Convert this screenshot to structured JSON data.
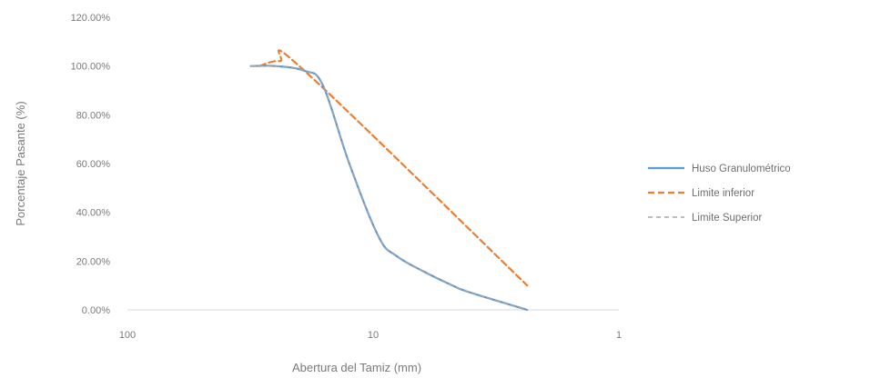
{
  "chart_data": {
    "type": "line",
    "title": "",
    "xlabel": "Abertura del Tamiz (mm)",
    "ylabel": "Porcentaje Pasante (%)",
    "x_scale": "log",
    "x_reversed": true,
    "xlim": [
      100,
      1
    ],
    "ylim": [
      0,
      1.2
    ],
    "x_ticks": [
      {
        "value": 100,
        "label": "100"
      },
      {
        "value": 10,
        "label": "10"
      },
      {
        "value": 1,
        "label": "1"
      }
    ],
    "y_ticks": [
      {
        "value": 0,
        "label": "0.00%"
      },
      {
        "value": 0.2,
        "label": "20.00%"
      },
      {
        "value": 0.4,
        "label": "40.00%"
      },
      {
        "value": 0.6,
        "label": "60.00%"
      },
      {
        "value": 0.8,
        "label": "80.00%"
      },
      {
        "value": 1.0,
        "label": "100.00%"
      },
      {
        "value": 1.2,
        "label": "120.00%"
      }
    ],
    "grid": false,
    "legend_position": "right",
    "series": [
      {
        "name": "Huso Granulométrico",
        "color": "#5b9bd5",
        "style": "solid",
        "points": [
          [
            31.5,
            1.0
          ],
          [
            25,
            1.0
          ],
          [
            19,
            0.98
          ],
          [
            16,
            0.92
          ],
          [
            12.5,
            0.6
          ],
          [
            9.5,
            0.3
          ],
          [
            8,
            0.22
          ],
          [
            6.3,
            0.16
          ],
          [
            4.75,
            0.1
          ],
          [
            4,
            0.07
          ],
          [
            2.36,
            0.0
          ]
        ]
      },
      {
        "name": "Limite inferior",
        "color": "#ed7d31",
        "style": "dashed",
        "points": [
          [
            29,
            1.0
          ],
          [
            24,
            1.02
          ],
          [
            19,
            0.98
          ],
          [
            2.36,
            0.1
          ]
        ]
      },
      {
        "name": "Limite Superior",
        "color": "#a5a5a5",
        "style": "dashed",
        "points": [
          [
            31.5,
            1.0
          ],
          [
            25,
            1.0
          ],
          [
            19,
            0.98
          ],
          [
            16,
            0.92
          ],
          [
            12.5,
            0.6
          ],
          [
            9.5,
            0.3
          ],
          [
            8,
            0.22
          ],
          [
            6.3,
            0.16
          ],
          [
            4.75,
            0.1
          ],
          [
            4,
            0.07
          ],
          [
            2.36,
            0.0
          ]
        ]
      }
    ]
  }
}
